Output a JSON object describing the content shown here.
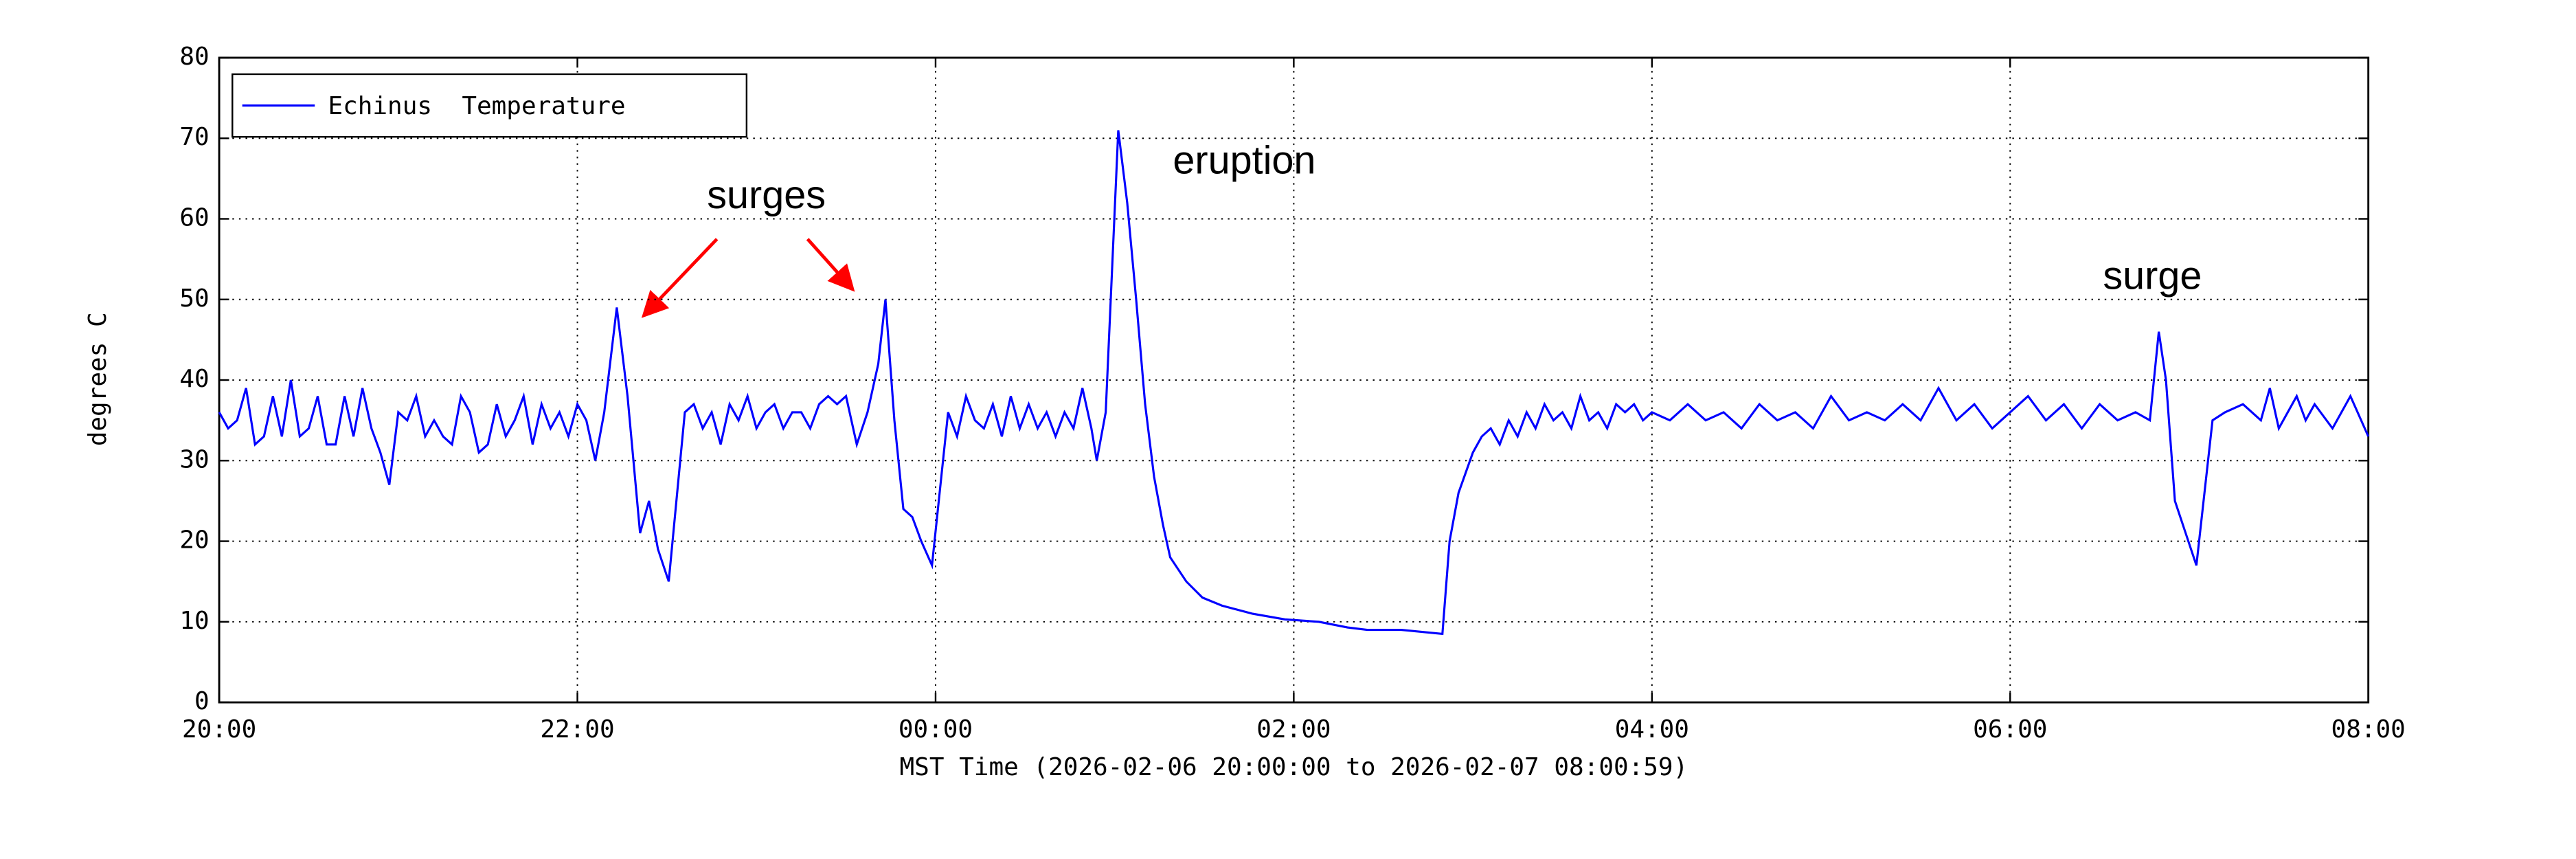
{
  "chart_data": {
    "type": "line",
    "x_label": "MST Time (2026-02-06 20:00:00 to 2026-02-07 08:00:59)",
    "y_label": "degrees C",
    "annotations": [
      "surges",
      "eruption",
      "surge"
    ],
    "xlim": [
      0,
      12
    ],
    "xticks": [
      {
        "value": 0,
        "label": "20:00"
      },
      {
        "value": 2,
        "label": "22:00"
      },
      {
        "value": 4,
        "label": "00:00"
      },
      {
        "value": 6,
        "label": "02:00"
      },
      {
        "value": 8,
        "label": "04:00"
      },
      {
        "value": 10,
        "label": "06:00"
      },
      {
        "value": 12,
        "label": "08:00"
      }
    ],
    "ylim": [
      0,
      80
    ],
    "yticks": [
      0,
      10,
      20,
      30,
      40,
      50,
      60,
      70,
      80
    ],
    "grid": true,
    "legend": "upper left",
    "x": [
      0,
      0.05,
      0.1,
      0.15,
      0.2,
      0.25,
      0.3,
      0.35,
      0.4,
      0.45,
      0.5,
      0.55,
      0.6,
      0.65,
      0.7,
      0.75,
      0.8,
      0.85,
      0.9,
      0.95,
      1.0,
      1.05,
      1.1,
      1.15,
      1.2,
      1.25,
      1.3,
      1.35,
      1.4,
      1.45,
      1.5,
      1.55,
      1.6,
      1.65,
      1.7,
      1.75,
      1.8,
      1.85,
      1.9,
      1.95,
      2.0,
      2.05,
      2.1,
      2.15,
      2.22,
      2.28,
      2.35,
      2.4,
      2.45,
      2.51,
      2.6,
      2.65,
      2.7,
      2.75,
      2.8,
      2.85,
      2.9,
      2.95,
      3.0,
      3.05,
      3.1,
      3.15,
      3.2,
      3.25,
      3.3,
      3.35,
      3.4,
      3.45,
      3.5,
      3.56,
      3.62,
      3.68,
      3.72,
      3.77,
      3.82,
      3.87,
      3.92,
      3.98,
      4.07,
      4.12,
      4.17,
      4.22,
      4.27,
      4.32,
      4.37,
      4.42,
      4.47,
      4.52,
      4.57,
      4.62,
      4.67,
      4.72,
      4.77,
      4.82,
      4.87,
      4.9,
      4.95,
      5.02,
      5.07,
      5.12,
      5.17,
      5.22,
      5.27,
      5.31,
      5.4,
      5.49,
      5.6,
      5.77,
      5.95,
      6.14,
      6.3,
      6.41,
      6.6,
      6.83,
      6.87,
      6.92,
      7.0,
      7.05,
      7.1,
      7.15,
      7.2,
      7.25,
      7.3,
      7.35,
      7.4,
      7.45,
      7.5,
      7.55,
      7.6,
      7.65,
      7.7,
      7.75,
      7.8,
      7.85,
      7.9,
      7.95,
      8.0,
      8.1,
      8.2,
      8.3,
      8.4,
      8.5,
      8.6,
      8.7,
      8.8,
      8.9,
      9.0,
      9.1,
      9.2,
      9.3,
      9.4,
      9.5,
      9.6,
      9.7,
      9.8,
      9.9,
      10.0,
      10.1,
      10.2,
      10.3,
      10.4,
      10.5,
      10.6,
      10.7,
      10.78,
      10.83,
      10.87,
      10.92,
      10.98,
      11.04,
      11.13,
      11.2,
      11.3,
      11.4,
      11.45,
      11.5,
      11.6,
      11.65,
      11.7,
      11.8,
      11.9,
      12.0
    ],
    "series": [
      {
        "name": "Echinus  Temperature",
        "color": "#0000ff",
        "values": [
          36,
          34,
          35,
          39,
          32,
          33,
          38,
          33,
          40,
          33,
          34,
          38,
          32,
          32,
          38,
          33,
          39,
          34,
          31,
          27,
          36,
          35,
          38,
          33,
          35,
          33,
          32,
          38,
          36,
          31,
          32,
          37,
          33,
          35,
          38,
          32,
          37,
          34,
          36,
          33,
          37,
          35,
          30,
          36,
          49,
          38,
          21,
          25,
          19,
          15,
          36,
          37,
          34,
          36,
          32,
          37,
          35,
          38,
          34,
          36,
          37,
          34,
          36,
          36,
          34,
          37,
          38,
          37,
          38,
          32,
          36,
          42,
          50,
          35,
          24,
          23,
          20,
          17,
          36,
          33,
          38,
          35,
          34,
          37,
          33,
          38,
          34,
          37,
          34,
          36,
          33,
          36,
          34,
          39,
          34,
          30,
          36,
          71,
          62,
          50,
          37,
          28,
          22,
          18,
          15,
          13,
          12,
          11,
          10.3,
          10,
          9.3,
          9,
          9,
          8.5,
          20,
          26,
          31,
          33,
          34,
          32,
          35,
          33,
          36,
          34,
          37,
          35,
          36,
          34,
          38,
          35,
          36,
          34,
          37,
          36,
          37,
          35,
          36,
          35,
          37,
          35,
          36,
          34,
          37,
          35,
          36,
          34,
          38,
          35,
          36,
          35,
          37,
          35,
          39,
          35,
          37,
          34,
          36,
          38,
          35,
          37,
          34,
          37,
          35,
          36,
          35,
          46,
          40,
          25,
          21,
          17,
          35,
          36,
          37,
          35,
          39,
          34,
          38,
          35,
          37,
          34,
          38,
          33
        ]
      }
    ]
  }
}
